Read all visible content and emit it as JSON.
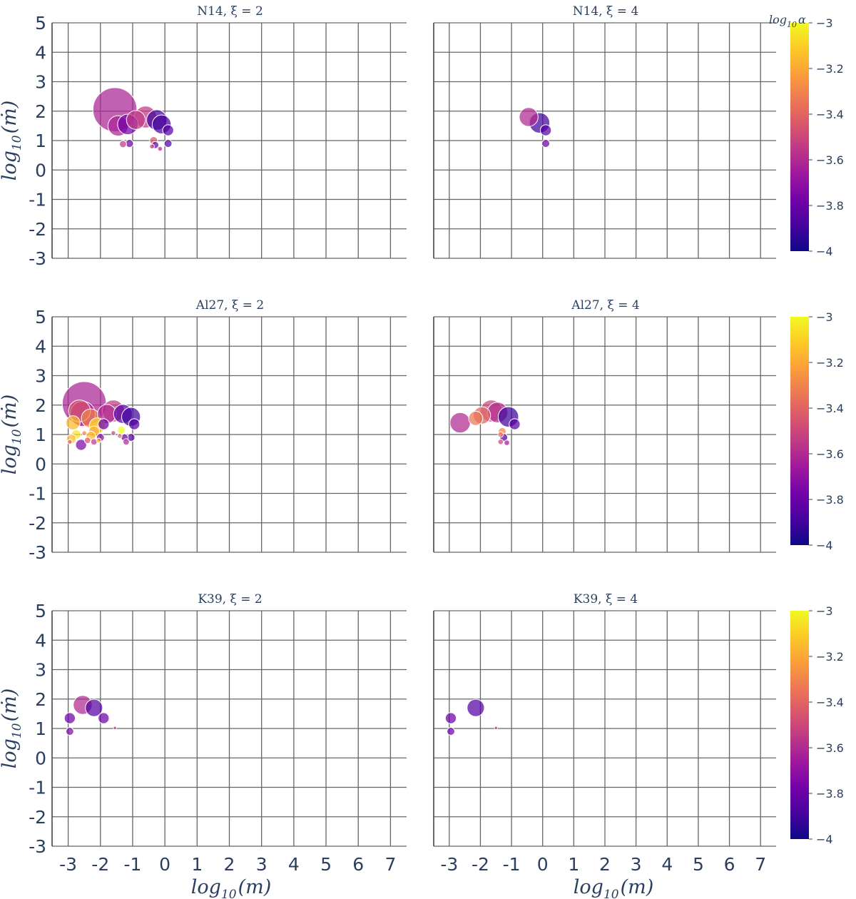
{
  "colors": {
    "scale": [
      "#0d0887",
      "#46039f",
      "#7201a8",
      "#9c179e",
      "#bd3786",
      "#d8576b",
      "#ed7953",
      "#fb9f3a",
      "#fdca26",
      "#f0f921"
    ],
    "grid": "#666666",
    "text": "#2a3f5f"
  },
  "figure": {
    "xlabel_main": "log",
    "xlabel_sub": "10",
    "xlabel_var": "(m)",
    "ylabel_main": "log",
    "ylabel_sub": "10",
    "ylabel_var": "(ṁ)",
    "colorbar_title_main": "log",
    "colorbar_title_sub": "10",
    "colorbar_title_var": "α",
    "colorbar_ticks": [
      "−3",
      "−3.2",
      "−3.4",
      "−3.6",
      "−3.8",
      "−4"
    ],
    "colorbar_range": [
      -4,
      -3
    ]
  },
  "chart_data": [
    {
      "type": "scatter",
      "title": "N14, ξ = 2",
      "xlabel": "log10(m)",
      "ylabel": "log10(ṁ)",
      "xlim": [
        -3.5,
        7.5
      ],
      "ylim": [
        -3,
        5
      ],
      "xticks": [
        "-3",
        "-2",
        "-1",
        "0",
        "1",
        "2",
        "3",
        "4",
        "5",
        "6",
        "7"
      ],
      "yticks": [
        "5",
        "4",
        "3",
        "2",
        "1",
        "0",
        "-1",
        "-2",
        "-3"
      ],
      "points": [
        {
          "x": -1.55,
          "y": 2.05,
          "s": 28,
          "c": -3.62
        },
        {
          "x": -1.45,
          "y": 1.5,
          "s": 13,
          "c": -3.62
        },
        {
          "x": -1.15,
          "y": 1.55,
          "s": 13,
          "c": -3.78
        },
        {
          "x": -0.9,
          "y": 1.7,
          "s": 12,
          "c": -3.55
        },
        {
          "x": -0.6,
          "y": 1.8,
          "s": 14,
          "c": -3.55
        },
        {
          "x": -0.25,
          "y": 1.7,
          "s": 13,
          "c": -3.9
        },
        {
          "x": -0.1,
          "y": 1.55,
          "s": 12,
          "c": -3.88
        },
        {
          "x": 0.1,
          "y": 1.35,
          "s": 7,
          "c": -3.85
        },
        {
          "x": -1.1,
          "y": 0.9,
          "s": 5,
          "c": -3.8
        },
        {
          "x": -1.3,
          "y": 0.88,
          "s": 4.5,
          "c": -3.55
        },
        {
          "x": -0.35,
          "y": 1.0,
          "s": 5,
          "c": -3.45
        },
        {
          "x": -0.3,
          "y": 0.85,
          "s": 4.5,
          "c": -3.8
        },
        {
          "x": 0.1,
          "y": 0.9,
          "s": 5,
          "c": -3.85
        },
        {
          "x": -0.4,
          "y": 0.8,
          "s": 3,
          "c": -3.55
        },
        {
          "x": -0.15,
          "y": 0.72,
          "s": 3,
          "c": -3.6
        }
      ]
    },
    {
      "type": "scatter",
      "title": "N14, ξ = 4",
      "xlabel": "log10(m)",
      "ylabel": "log10(ṁ)",
      "xlim": [
        -3.5,
        7.5
      ],
      "ylim": [
        -3,
        5
      ],
      "xticks": [
        "-3",
        "-2",
        "-1",
        "0",
        "1",
        "2",
        "3",
        "4",
        "5",
        "6",
        "7"
      ],
      "yticks": [
        "5",
        "4",
        "3",
        "2",
        "1",
        "0",
        "-1",
        "-2",
        "-3"
      ],
      "points": [
        {
          "x": -0.45,
          "y": 1.8,
          "s": 12,
          "c": -3.6
        },
        {
          "x": -0.1,
          "y": 1.6,
          "s": 13,
          "c": -3.9
        },
        {
          "x": 0.1,
          "y": 1.35,
          "s": 7,
          "c": -3.85
        },
        {
          "x": 0.1,
          "y": 0.9,
          "s": 5,
          "c": -3.8
        }
      ]
    },
    {
      "type": "scatter",
      "title": "Al27, ξ = 2",
      "xlabel": "log10(m)",
      "ylabel": "log10(ṁ)",
      "xlim": [
        -3.5,
        7.5
      ],
      "ylim": [
        -3,
        5
      ],
      "xticks": [
        "-3",
        "-2",
        "-1",
        "0",
        "1",
        "2",
        "3",
        "4",
        "5",
        "6",
        "7"
      ],
      "yticks": [
        "5",
        "4",
        "3",
        "2",
        "1",
        "0",
        "-1",
        "-2",
        "-3"
      ],
      "points": [
        {
          "x": -2.5,
          "y": 2.05,
          "s": 28,
          "c": -3.62
        },
        {
          "x": -2.65,
          "y": 1.8,
          "s": 14,
          "c": -3.45
        },
        {
          "x": -2.55,
          "y": 1.7,
          "s": 16,
          "c": -3.62
        },
        {
          "x": -2.3,
          "y": 1.55,
          "s": 12,
          "c": -3.3
        },
        {
          "x": -2.1,
          "y": 1.3,
          "s": 10,
          "c": -3.1
        },
        {
          "x": -2.85,
          "y": 1.4,
          "s": 9,
          "c": -3.15
        },
        {
          "x": -1.6,
          "y": 1.8,
          "s": 14,
          "c": -3.55
        },
        {
          "x": -1.8,
          "y": 1.7,
          "s": 12,
          "c": -3.6
        },
        {
          "x": -1.3,
          "y": 1.7,
          "s": 12,
          "c": -3.85
        },
        {
          "x": -1.05,
          "y": 1.6,
          "s": 12,
          "c": -3.9
        },
        {
          "x": -0.95,
          "y": 1.35,
          "s": 7,
          "c": -3.85
        },
        {
          "x": -1.9,
          "y": 1.35,
          "s": 7,
          "c": -3.8
        },
        {
          "x": -2.2,
          "y": 1.1,
          "s": 7,
          "c": -3.2
        },
        {
          "x": -2.75,
          "y": 1.0,
          "s": 6,
          "c": -3.05
        },
        {
          "x": -2.9,
          "y": 0.85,
          "s": 6,
          "c": -3.15
        },
        {
          "x": -2.3,
          "y": 0.95,
          "s": 6,
          "c": -3.15
        },
        {
          "x": -2.0,
          "y": 0.9,
          "s": 5,
          "c": -3.75
        },
        {
          "x": -2.6,
          "y": 0.65,
          "s": 7,
          "c": -3.75
        },
        {
          "x": -2.4,
          "y": 0.8,
          "s": 4,
          "c": -3.45
        },
        {
          "x": -2.2,
          "y": 0.75,
          "s": 4,
          "c": -3.55
        },
        {
          "x": -1.35,
          "y": 1.15,
          "s": 5,
          "c": -3.0
        },
        {
          "x": -1.25,
          "y": 0.9,
          "s": 4.5,
          "c": -3.8
        },
        {
          "x": -1.05,
          "y": 0.9,
          "s": 5,
          "c": -3.85
        },
        {
          "x": -1.2,
          "y": 0.75,
          "s": 4,
          "c": -3.6
        },
        {
          "x": -1.6,
          "y": 1.05,
          "s": 3,
          "c": -3.5
        },
        {
          "x": -2.5,
          "y": 1.05,
          "s": 3,
          "c": -3.3
        },
        {
          "x": -2.05,
          "y": 0.8,
          "s": 3,
          "c": -3.2
        },
        {
          "x": -1.4,
          "y": 0.95,
          "s": 3,
          "c": -3.4
        },
        {
          "x": -2.95,
          "y": 0.75,
          "s": 3,
          "c": -3.4
        }
      ]
    },
    {
      "type": "scatter",
      "title": "Al27, ξ = 4",
      "xlabel": "log10(m)",
      "ylabel": "log10(ṁ)",
      "xlim": [
        -3.5,
        7.5
      ],
      "ylim": [
        -3,
        5
      ],
      "xticks": [
        "-3",
        "-2",
        "-1",
        "0",
        "1",
        "2",
        "3",
        "4",
        "5",
        "6",
        "7"
      ],
      "yticks": [
        "5",
        "4",
        "3",
        "2",
        "1",
        "0",
        "-1",
        "-2",
        "-3"
      ],
      "points": [
        {
          "x": -2.65,
          "y": 1.4,
          "s": 13,
          "c": -3.6
        },
        {
          "x": -2.15,
          "y": 1.55,
          "s": 9,
          "c": -3.35
        },
        {
          "x": -1.95,
          "y": 1.65,
          "s": 11,
          "c": -3.4
        },
        {
          "x": -1.65,
          "y": 1.8,
          "s": 14,
          "c": -3.5
        },
        {
          "x": -1.45,
          "y": 1.75,
          "s": 13,
          "c": -3.6
        },
        {
          "x": -1.1,
          "y": 1.6,
          "s": 13,
          "c": -3.9
        },
        {
          "x": -0.9,
          "y": 1.35,
          "s": 7,
          "c": -3.85
        },
        {
          "x": -1.3,
          "y": 1.1,
          "s": 5,
          "c": -3.3
        },
        {
          "x": -1.25,
          "y": 0.9,
          "s": 5,
          "c": -3.85
        },
        {
          "x": -1.35,
          "y": 0.75,
          "s": 3.5,
          "c": -3.5
        },
        {
          "x": -1.15,
          "y": 0.72,
          "s": 3.5,
          "c": -3.65
        },
        {
          "x": -1.35,
          "y": 1.0,
          "s": 3.5,
          "c": -3.35
        }
      ]
    },
    {
      "type": "scatter",
      "title": "K39, ξ = 2",
      "xlabel": "log10(m)",
      "ylabel": "log10(ṁ)",
      "xlim": [
        -3.5,
        7.5
      ],
      "ylim": [
        -3,
        5
      ],
      "xticks": [
        "-3",
        "-2",
        "-1",
        "0",
        "1",
        "2",
        "3",
        "4",
        "5",
        "6",
        "7"
      ],
      "yticks": [
        "5",
        "4",
        "3",
        "2",
        "1",
        "0",
        "-1",
        "-2",
        "-3"
      ],
      "points": [
        {
          "x": -2.55,
          "y": 1.8,
          "s": 12,
          "c": -3.6
        },
        {
          "x": -2.2,
          "y": 1.7,
          "s": 11,
          "c": -3.85
        },
        {
          "x": -1.9,
          "y": 1.35,
          "s": 7,
          "c": -3.8
        },
        {
          "x": -2.95,
          "y": 1.35,
          "s": 7,
          "c": -3.8
        },
        {
          "x": -2.95,
          "y": 0.9,
          "s": 5,
          "c": -3.75
        },
        {
          "x": -1.55,
          "y": 1.02,
          "s": 2,
          "c": -3.6
        }
      ]
    },
    {
      "type": "scatter",
      "title": "K39, ξ = 4",
      "xlabel": "log10(m)",
      "ylabel": "log10(ṁ)",
      "xlim": [
        -3.5,
        7.5
      ],
      "ylim": [
        -3,
        5
      ],
      "xticks": [
        "-3",
        "-2",
        "-1",
        "0",
        "1",
        "2",
        "3",
        "4",
        "5",
        "6",
        "7"
      ],
      "yticks": [
        "5",
        "4",
        "3",
        "2",
        "1",
        "0",
        "-1",
        "-2",
        "-3"
      ],
      "points": [
        {
          "x": -2.15,
          "y": 1.7,
          "s": 11,
          "c": -3.85
        },
        {
          "x": -2.95,
          "y": 1.35,
          "s": 7,
          "c": -3.8
        },
        {
          "x": -2.95,
          "y": 0.9,
          "s": 5,
          "c": -3.8
        },
        {
          "x": -1.5,
          "y": 1.02,
          "s": 2,
          "c": -3.6
        }
      ]
    }
  ]
}
